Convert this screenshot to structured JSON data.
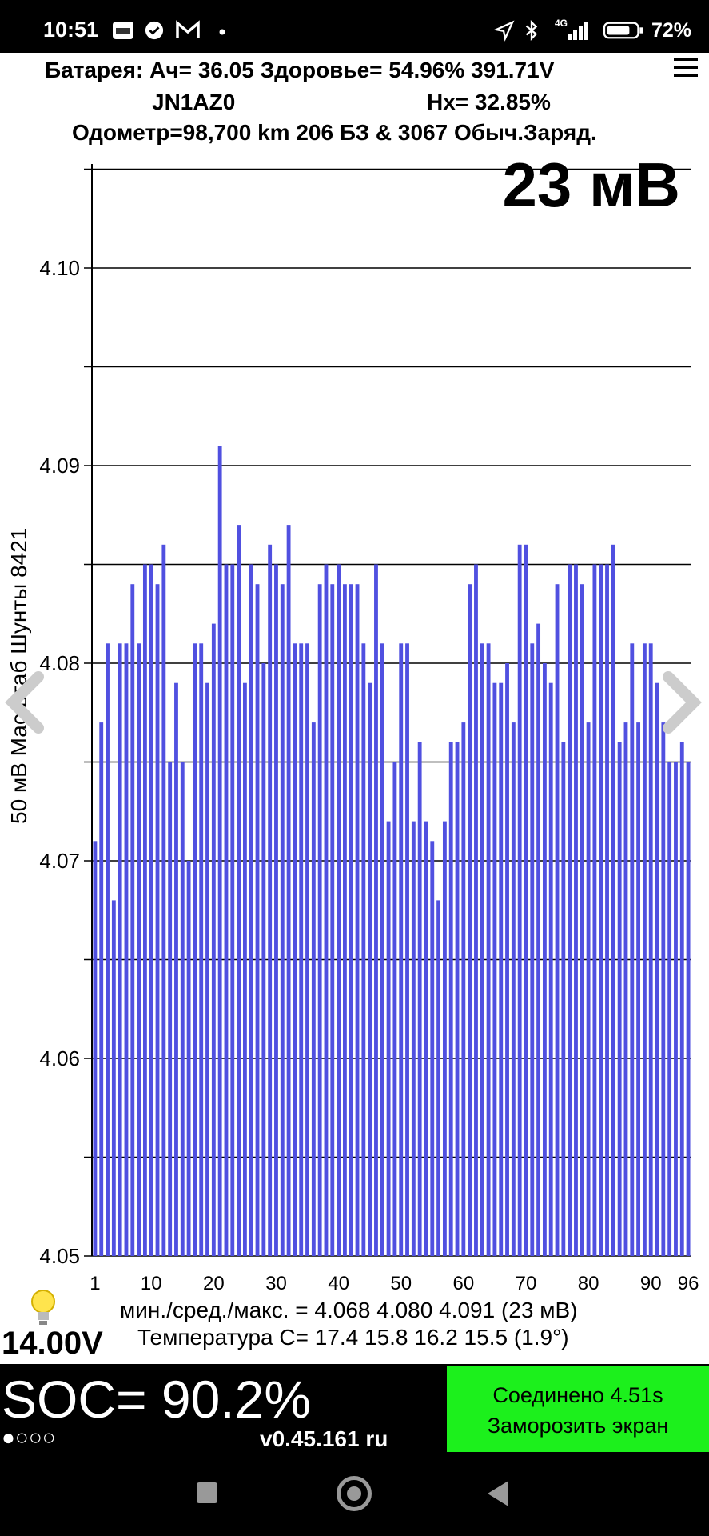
{
  "status_bar": {
    "time": "10:51",
    "battery_pct": "72%",
    "net_label": "4G",
    "left_icons": [
      "car-app-icon",
      "check-circle-icon",
      "gmail-icon",
      "dot-icon"
    ],
    "right_icons": [
      "location-arrow-icon",
      "bluetooth-icon",
      "signal-icon",
      "battery-icon"
    ]
  },
  "header": {
    "line1": "Батарея:  Ач= 36.05  Здоровье= 54.96%   391.71V",
    "vin": "JN1AZ0",
    "hx": "Hx= 32.85%",
    "line3": "Одометр=98,700 km 206 БЗ & 3067 Обыч.Заряд.",
    "big_value": "23 мВ"
  },
  "chart_data": {
    "type": "bar",
    "title": "",
    "ylabel": "50 мВ Масштаб  Шунты 8421",
    "ylim": [
      4.05,
      4.1055
    ],
    "yticks": [
      4.05,
      4.06,
      4.07,
      4.08,
      4.09,
      4.1
    ],
    "ytick_labels": [
      "4.05",
      "4.06",
      "4.07",
      "4.08",
      "4.09",
      "4.10"
    ],
    "xticks": [
      1,
      10,
      20,
      30,
      40,
      50,
      60,
      70,
      80,
      90,
      96
    ],
    "bar_color": "#5050e0",
    "values": [
      4.071,
      4.077,
      4.081,
      4.068,
      4.081,
      4.081,
      4.084,
      4.081,
      4.085,
      4.085,
      4.084,
      4.086,
      4.075,
      4.079,
      4.075,
      4.07,
      4.081,
      4.081,
      4.079,
      4.082,
      4.091,
      4.085,
      4.085,
      4.087,
      4.079,
      4.085,
      4.084,
      4.08,
      4.086,
      4.085,
      4.084,
      4.087,
      4.081,
      4.081,
      4.081,
      4.077,
      4.084,
      4.085,
      4.084,
      4.085,
      4.084,
      4.084,
      4.084,
      4.081,
      4.079,
      4.085,
      4.081,
      4.072,
      4.075,
      4.081,
      4.081,
      4.072,
      4.076,
      4.072,
      4.071,
      4.068,
      4.072,
      4.076,
      4.076,
      4.077,
      4.084,
      4.085,
      4.081,
      4.081,
      4.079,
      4.079,
      4.08,
      4.077,
      4.086,
      4.086,
      4.081,
      4.082,
      4.08,
      4.079,
      4.084,
      4.076,
      4.085,
      4.085,
      4.084,
      4.077,
      4.085,
      4.085,
      4.085,
      4.086,
      4.076,
      4.077,
      4.081,
      4.077,
      4.081,
      4.081,
      4.079,
      4.077,
      4.075,
      4.075,
      4.076,
      4.075
    ]
  },
  "footer": {
    "minmax": "мин./сред./макс. = 4.068 4.080 4.091  (23 мВ)",
    "temperature": "Температура C= 17.4  15.8  16.2  15.5  (1.9°)",
    "voltage": "14.00V"
  },
  "bottom": {
    "soc": "SOC= 90.2%",
    "dots": "●○○○",
    "version": "v0.45.161 ru",
    "conn_line1": "Соединено 4.51s",
    "conn_line2": "Заморозить экран",
    "conn_color": "#1cf01c"
  }
}
